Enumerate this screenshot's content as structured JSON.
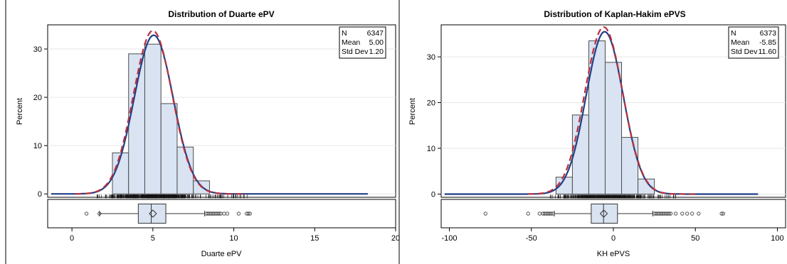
{
  "chart_data": [
    {
      "type": "histogram",
      "title": "Distribution of Duarte ePV",
      "xlabel": "Duarte ePV",
      "ylabel": "Percent",
      "xlim": [
        -1.5,
        20
      ],
      "ylim": [
        -0.7,
        35
      ],
      "xticks": [
        0,
        5,
        10,
        15,
        20
      ],
      "yticks": [
        0,
        10,
        20,
        30
      ],
      "bins": [
        {
          "lo": 2.5,
          "hi": 3.5,
          "percent": 8.5
        },
        {
          "lo": 3.5,
          "hi": 4.5,
          "percent": 29.0
        },
        {
          "lo": 4.5,
          "hi": 5.5,
          "percent": 31.0
        },
        {
          "lo": 5.5,
          "hi": 6.5,
          "percent": 18.7
        },
        {
          "lo": 6.5,
          "hi": 7.5,
          "percent": 9.7
        },
        {
          "lo": 7.5,
          "hi": 8.5,
          "percent": 2.7
        }
      ],
      "stats": [
        {
          "label": "N",
          "value": "6347"
        },
        {
          "label": "Mean",
          "value": "5.00"
        },
        {
          "label": "Std Dev",
          "value": "1.20"
        }
      ],
      "normal_curve": {
        "mean": 5.0,
        "sd": 1.2
      },
      "kernel_curve": {
        "mean": 5.05,
        "sd": 1.2
      },
      "box": {
        "q1": 4.1,
        "median": 4.9,
        "q3": 5.8,
        "mean": 5.0,
        "whisker_low": 1.7,
        "whisker_high": 8.2,
        "outliers": [
          0.9,
          1.7,
          8.3,
          8.4,
          8.5,
          8.6,
          8.7,
          8.8,
          8.9,
          9.0,
          9.1,
          9.2,
          9.4,
          9.6,
          10.3,
          10.8,
          10.9,
          11.0
        ]
      },
      "rug_range": [
        1.5,
        11.0
      ],
      "colors": {
        "bar_fill": "#d9e3f2",
        "bar_stroke": "#4d4d4d",
        "kernel": "#1f3f86",
        "normal": "#b8313f"
      }
    },
    {
      "type": "histogram",
      "title": "Distribution of Kaplan-Hakim ePVS",
      "xlabel": "KH ePVS",
      "ylabel": "Percent",
      "xlim": [
        -105,
        105
      ],
      "ylim": [
        -0.7,
        37
      ],
      "xticks": [
        -100,
        -50,
        0,
        50,
        100
      ],
      "yticks": [
        0,
        10,
        20,
        30
      ],
      "bins": [
        {
          "lo": -35,
          "hi": -25,
          "percent": 3.7
        },
        {
          "lo": -25,
          "hi": -15,
          "percent": 17.3
        },
        {
          "lo": -15,
          "hi": -5,
          "percent": 33.5
        },
        {
          "lo": -5,
          "hi": 5,
          "percent": 28.8
        },
        {
          "lo": 5,
          "hi": 15,
          "percent": 12.4
        },
        {
          "lo": 15,
          "hi": 25,
          "percent": 3.3
        }
      ],
      "stats": [
        {
          "label": "N",
          "value": "6373"
        },
        {
          "label": "Mean",
          "value": "-5.85"
        },
        {
          "label": "Std Dev",
          "value": "11.60"
        }
      ],
      "normal_curve": {
        "mean": -5.85,
        "sd": 11.6
      },
      "kernel_curve": {
        "mean": -5.3,
        "sd": 11.3
      },
      "box": {
        "q1": -13.5,
        "median": -6.0,
        "q3": 2.5,
        "mean": -5.85,
        "whisker_low": -36.0,
        "whisker_high": 24.0,
        "outliers": [
          -78,
          -52,
          -45,
          -43,
          -42,
          -41,
          -40,
          -39,
          -38,
          -37,
          25,
          26,
          27,
          28,
          29,
          30,
          31,
          32,
          33,
          34,
          35,
          38,
          42,
          45,
          48,
          52,
          66,
          67
        ]
      },
      "rug_range": [
        -40,
        40
      ],
      "colors": {
        "bar_fill": "#d9e3f2",
        "bar_stroke": "#4d4d4d",
        "kernel": "#1f3f86",
        "normal": "#b8313f"
      }
    }
  ]
}
